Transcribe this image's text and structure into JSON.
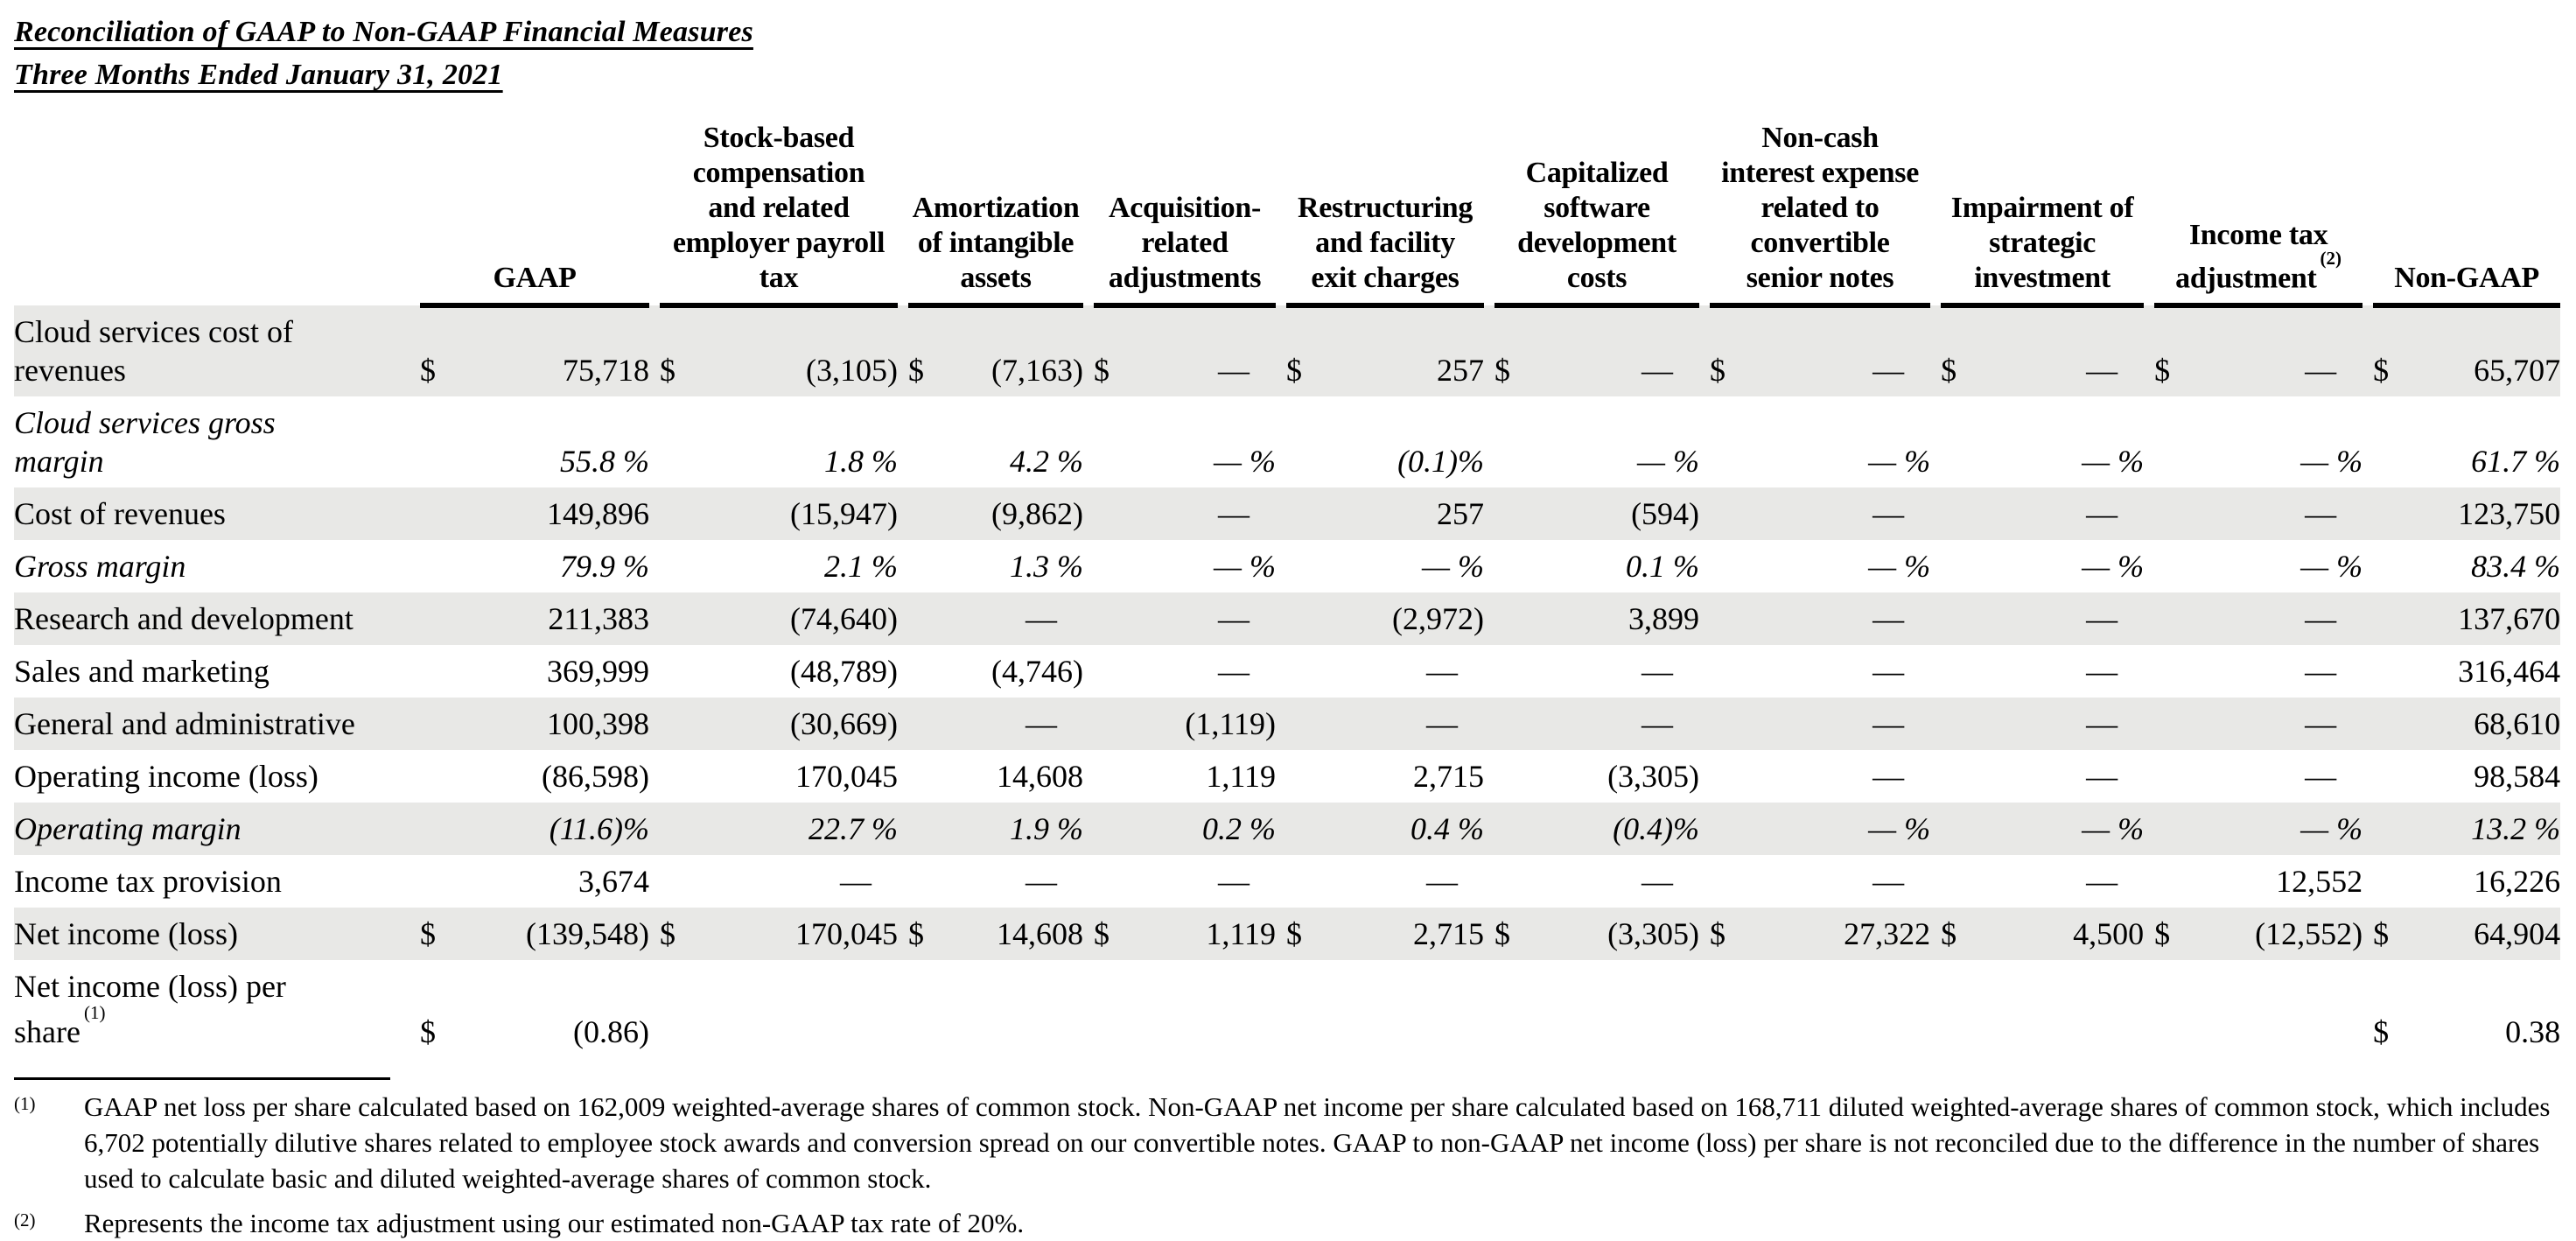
{
  "title": {
    "line1": "Reconciliation of GAAP to Non-GAAP Financial Measures",
    "line2": "Three Months Ended January 31, 2021"
  },
  "table": {
    "columns": [
      {
        "label": "GAAP",
        "sup": ""
      },
      {
        "label": "Stock-based\ncompensation\nand related\nemployer payroll\ntax",
        "sup": ""
      },
      {
        "label": "Amortization\nof intangible\nassets",
        "sup": ""
      },
      {
        "label": "Acquisition-\nrelated\nadjustments",
        "sup": ""
      },
      {
        "label": "Restructuring\nand facility\nexit charges",
        "sup": ""
      },
      {
        "label": "Capitalized\nsoftware\ndevelopment\ncosts",
        "sup": ""
      },
      {
        "label": "Non-cash\ninterest expense\nrelated to\nconvertible\nsenior notes",
        "sup": ""
      },
      {
        "label": "Impairment of\nstrategic\ninvestment",
        "sup": ""
      },
      {
        "label": "Income tax\nadjustment",
        "sup": "(2)"
      },
      {
        "label": "Non-GAAP",
        "sup": ""
      }
    ],
    "rows": [
      {
        "label": "Cloud services cost of\nrevenues",
        "sup": "",
        "shaded": true,
        "italic": false,
        "dollar": true,
        "values": [
          "75,718",
          "(3,105)",
          "(7,163)",
          "—",
          "257",
          "—",
          "—",
          "—",
          "—",
          "65,707"
        ]
      },
      {
        "label": "Cloud services gross\nmargin",
        "sup": "",
        "shaded": false,
        "italic": true,
        "dollar": false,
        "values": [
          "55.8 %",
          "1.8 %",
          "4.2 %",
          "— %",
          "(0.1)%",
          "— %",
          "— %",
          "— %",
          "— %",
          "61.7 %"
        ]
      },
      {
        "label": "Cost of revenues",
        "sup": "",
        "shaded": true,
        "italic": false,
        "dollar": false,
        "values": [
          "149,896",
          "(15,947)",
          "(9,862)",
          "—",
          "257",
          "(594)",
          "—",
          "—",
          "—",
          "123,750"
        ]
      },
      {
        "label": "Gross margin",
        "sup": "",
        "shaded": false,
        "italic": true,
        "dollar": false,
        "values": [
          "79.9 %",
          "2.1 %",
          "1.3 %",
          "— %",
          "— %",
          "0.1 %",
          "— %",
          "— %",
          "— %",
          "83.4 %"
        ]
      },
      {
        "label": "Research and development",
        "sup": "",
        "shaded": true,
        "italic": false,
        "dollar": false,
        "values": [
          "211,383",
          "(74,640)",
          "—",
          "—",
          "(2,972)",
          "3,899",
          "—",
          "—",
          "—",
          "137,670"
        ]
      },
      {
        "label": "Sales and marketing",
        "sup": "",
        "shaded": false,
        "italic": false,
        "dollar": false,
        "values": [
          "369,999",
          "(48,789)",
          "(4,746)",
          "—",
          "—",
          "—",
          "—",
          "—",
          "—",
          "316,464"
        ]
      },
      {
        "label": "General and administrative",
        "sup": "",
        "shaded": true,
        "italic": false,
        "dollar": false,
        "values": [
          "100,398",
          "(30,669)",
          "—",
          "(1,119)",
          "—",
          "—",
          "—",
          "—",
          "—",
          "68,610"
        ]
      },
      {
        "label": "Operating income (loss)",
        "sup": "",
        "shaded": false,
        "italic": false,
        "dollar": false,
        "values": [
          "(86,598)",
          "170,045",
          "14,608",
          "1,119",
          "2,715",
          "(3,305)",
          "—",
          "—",
          "—",
          "98,584"
        ]
      },
      {
        "label": "Operating margin",
        "sup": "",
        "shaded": true,
        "italic": true,
        "dollar": false,
        "values": [
          "(11.6)%",
          "22.7 %",
          "1.9 %",
          "0.2 %",
          "0.4 %",
          "(0.4)%",
          "— %",
          "— %",
          "— %",
          "13.2 %"
        ]
      },
      {
        "label": "Income tax provision",
        "sup": "",
        "shaded": false,
        "italic": false,
        "dollar": false,
        "values": [
          "3,674",
          "—",
          "—",
          "—",
          "—",
          "—",
          "—",
          "—",
          "12,552",
          "16,226"
        ]
      },
      {
        "label": "Net income (loss)",
        "sup": "",
        "shaded": true,
        "italic": false,
        "dollar": true,
        "values": [
          "(139,548)",
          "170,045",
          "14,608",
          "1,119",
          "2,715",
          "(3,305)",
          "27,322",
          "4,500",
          "(12,552)",
          "64,904"
        ]
      },
      {
        "label": "Net income (loss) per\nshare",
        "sup": "(1)",
        "shaded": false,
        "italic": false,
        "dollar": true,
        "values": [
          "(0.86)",
          "",
          "",
          "",
          "",
          "",
          "",
          "",
          "",
          "0.38"
        ]
      }
    ]
  },
  "footnotes": [
    {
      "marker": "(1)",
      "text": "GAAP net loss per share calculated based on 162,009 weighted-average shares of common stock. Non-GAAP net income per share calculated based on 168,711 diluted weighted-average shares of common stock, which includes 6,702 potentially dilutive shares related to employee stock awards and conversion spread on our convertible notes. GAAP to non-GAAP net income (loss) per share is not reconciled due to the difference in the number of shares used to calculate basic and diluted weighted-average shares of common stock."
    },
    {
      "marker": "(2)",
      "text": "Represents the income tax adjustment using our estimated non-GAAP tax rate of 20%."
    }
  ],
  "colors": {
    "stripe": "#e8e8e6",
    "text": "#000000"
  }
}
